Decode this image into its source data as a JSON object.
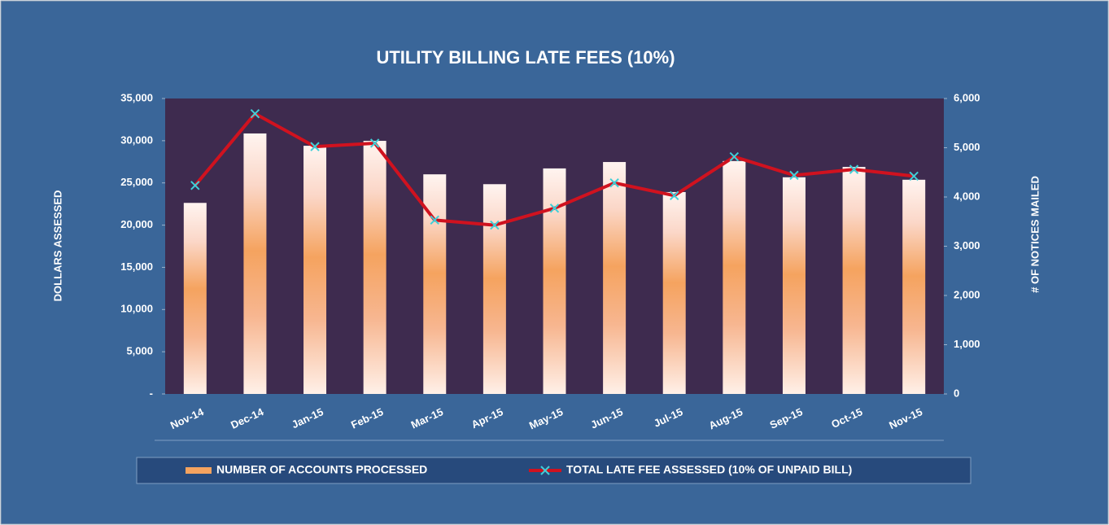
{
  "chart_data": {
    "type": "bar",
    "title": "UTILITY BILLING LATE FEES (10%)",
    "y_label": "DOLLARS ASSESSED",
    "y2_label": "# OF NOTICES MAILED",
    "categories": [
      "Nov-14",
      "Dec-14",
      "Jan-15",
      "Feb-15",
      "Mar-15",
      "Apr-15",
      "May-15",
      "Jun-15",
      "Jul-15",
      "Aug-15",
      "Sep-15",
      "Oct-15",
      "Nov-15"
    ],
    "series": [
      {
        "name": "NUMBER OF ACCOUNTS PROCESSED",
        "type": "bar",
        "axis": "y2",
        "color": "#f5a35f",
        "values": [
          3880,
          5290,
          5040,
          5140,
          4460,
          4260,
          4580,
          4710,
          4100,
          4730,
          4400,
          4610,
          4350
        ]
      },
      {
        "name": "TOTAL LATE FEE ASSESSED (10% OF UNPAID BILL)",
        "type": "line",
        "axis": "y",
        "color": "#d0121f",
        "marker_color": "#3fd0d8",
        "values": [
          24700,
          33200,
          29300,
          29700,
          20600,
          20000,
          22000,
          25000,
          23500,
          28100,
          25900,
          26600,
          25800
        ]
      }
    ],
    "ylim": [
      0,
      35000
    ],
    "yticks": [
      {
        "value": 0,
        "label": "-"
      },
      {
        "value": 5000,
        "label": "5,000"
      },
      {
        "value": 10000,
        "label": "10,000"
      },
      {
        "value": 15000,
        "label": "15,000"
      },
      {
        "value": 20000,
        "label": "20,000"
      },
      {
        "value": 25000,
        "label": "25,000"
      },
      {
        "value": 30000,
        "label": "30,000"
      },
      {
        "value": 35000,
        "label": "35,000"
      }
    ],
    "y2lim": [
      0,
      6000
    ],
    "y2ticks": [
      0,
      {
        "value": 1000,
        "label": "1,000"
      },
      {
        "value": 2000,
        "label": "2,000"
      },
      {
        "value": 3000,
        "label": "3,000"
      },
      {
        "value": 4000,
        "label": "4,000"
      },
      {
        "value": 5000,
        "label": "5,000"
      },
      {
        "value": 6000,
        "label": "6,000"
      }
    ],
    "legend": "bottom"
  }
}
